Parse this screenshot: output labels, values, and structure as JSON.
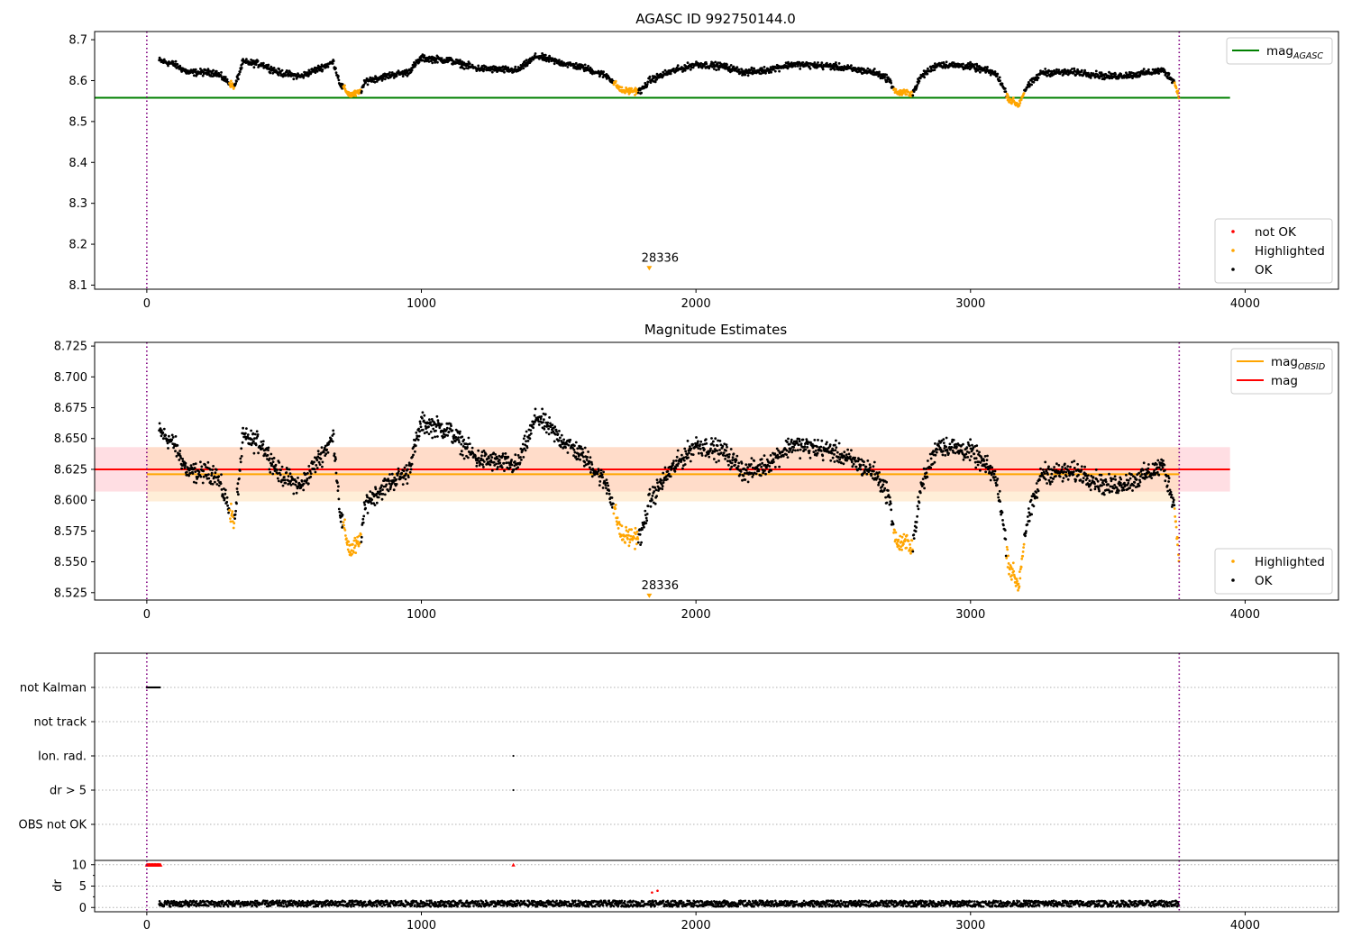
{
  "chart_data": [
    {
      "type": "scatter",
      "title": "AGASC ID 992750144.0",
      "xlim": [
        -190,
        4340
      ],
      "ylim": [
        8.09,
        8.72
      ],
      "xticks": [
        0,
        1000,
        2000,
        3000,
        4000
      ],
      "yticks": [
        8.1,
        8.2,
        8.3,
        8.4,
        8.5,
        8.6,
        8.7
      ],
      "ytick_decimals": 1,
      "vlines": [
        0,
        3760
      ],
      "hline": {
        "label": "mag",
        "label_sub": "AGASC",
        "value": 8.558,
        "x_range": [
          -190,
          3945
        ],
        "color": "#008000"
      },
      "annotation": {
        "text": "28336",
        "x": 1830,
        "y": 8.14
      },
      "legend_top": [
        {
          "label": "mag",
          "sub": "AGASC",
          "color": "#008000",
          "kind": "line"
        }
      ],
      "legend_bottom": [
        {
          "label": "not OK",
          "color": "#ff0000",
          "kind": "dot"
        },
        {
          "label": "Highlighted",
          "color": "#ffa500",
          "kind": "dot"
        },
        {
          "label": "OK",
          "color": "#000000",
          "kind": "dot"
        }
      ],
      "curve_offset": 0,
      "dip_scale": 1.0,
      "grid": false
    },
    {
      "type": "scatter",
      "title": "Magnitude Estimates",
      "xlim": [
        -190,
        4340
      ],
      "ylim": [
        8.519,
        8.728
      ],
      "xticks": [
        0,
        1000,
        2000,
        3000,
        4000
      ],
      "yticks": [
        8.525,
        8.55,
        8.575,
        8.6,
        8.625,
        8.65,
        8.675,
        8.7,
        8.725
      ],
      "ytick_decimals": 3,
      "vlines": [
        0,
        3760
      ],
      "lines": [
        {
          "label": "mag",
          "label_sub": "OBSID",
          "value": 8.621,
          "x_range": [
            0,
            3760
          ],
          "color": "#ffa500"
        },
        {
          "label": "mag",
          "label_sub": "",
          "value": 8.625,
          "x_range": [
            -190,
            3945
          ],
          "color": "#ff0000"
        }
      ],
      "bands": [
        {
          "from": 8.607,
          "to": 8.643,
          "x_range": [
            -190,
            3945
          ],
          "color": "#ffb6c1"
        },
        {
          "from": 8.599,
          "to": 8.643,
          "x_range": [
            0,
            3760
          ],
          "color": "#ffd9a8"
        }
      ],
      "annotation": {
        "text": "28336",
        "x": 1830,
        "y": 8.522
      },
      "legend_top": [
        {
          "label": "mag",
          "sub": "OBSID",
          "color": "#ffa500",
          "kind": "line"
        },
        {
          "label": "mag",
          "sub": "",
          "color": "#ff0000",
          "kind": "line"
        }
      ],
      "legend_bottom": [
        {
          "label": "Highlighted",
          "color": "#ffa500",
          "kind": "dot"
        },
        {
          "label": "OK",
          "color": "#000000",
          "kind": "dot"
        }
      ],
      "curve_offset": 0.003,
      "dip_scale": 1.15,
      "grid": false
    },
    {
      "type": "scatter",
      "categories": [
        "not Kalman",
        "not track",
        "Ion. rad.",
        "dr > 5",
        "OBS not OK"
      ],
      "flag_points": [
        {
          "category": "not Kalman",
          "x_from": 0,
          "x_to": 50
        },
        {
          "category": "Ion. rad.",
          "x_from": 1335,
          "x_to": 1337
        },
        {
          "category": "dr > 5",
          "x_from": 1335,
          "x_to": 1337
        }
      ],
      "grid": true
    },
    {
      "type": "scatter",
      "ylabel": "dr",
      "ylim": [
        -1,
        11
      ],
      "xticks": [
        0,
        1000,
        2000,
        3000,
        4000
      ],
      "yticks": [
        0,
        5,
        10
      ],
      "clipped_points": [
        {
          "x_from": 0,
          "x_to": 50,
          "y": 10
        },
        {
          "x_from": 1335,
          "x_to": 1337,
          "y": 10
        }
      ],
      "outliers": [
        {
          "x": 1840,
          "y": 3.5
        },
        {
          "x": 1860,
          "y": 3.9
        }
      ],
      "dr_typical_range": [
        0.2,
        1.6
      ],
      "grid": true
    }
  ],
  "series_colors": {
    "ok": "#000000",
    "highlighted": "#ffa500",
    "not_ok": "#ff0000",
    "vline": "#800080"
  }
}
